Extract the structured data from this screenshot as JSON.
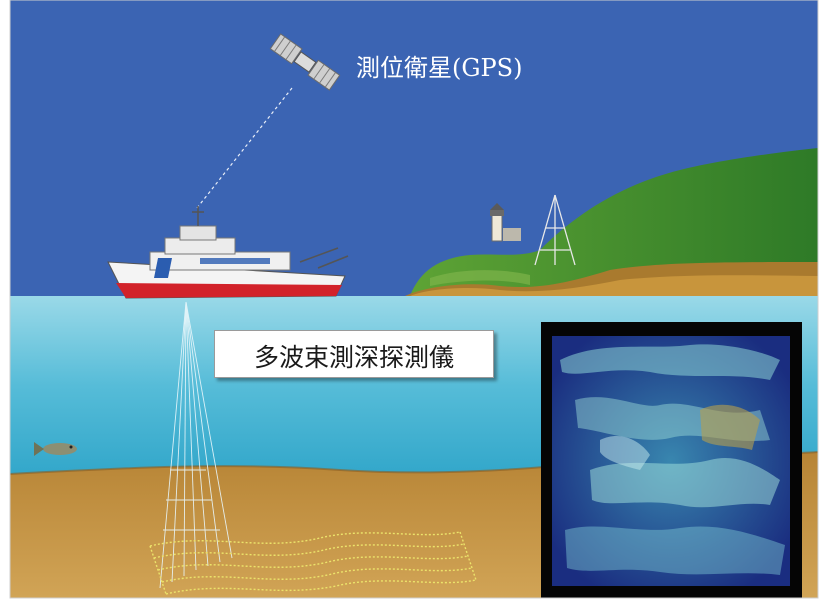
{
  "labels": {
    "gps": "測位衛星(GPS)",
    "multibeam": "多波束測深探測儀"
  },
  "colors": {
    "sky": "#3b64b3",
    "sea_surface": "#8fd6e6",
    "sea_deep": "#2f9fc3",
    "seabed": "#c3913d",
    "hill_green": "#3f8d2b",
    "ship_hull_red": "#d2222a",
    "survey_grid": "#e9e26a",
    "bathymetry_panel": "#0a0a0a"
  },
  "icons": [
    "satellite-icon",
    "survey-ship",
    "lighthouse",
    "fish",
    "sonar-beam",
    "bathymetry-image"
  ]
}
